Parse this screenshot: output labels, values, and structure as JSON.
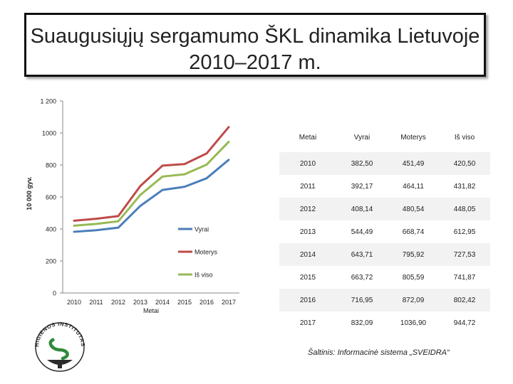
{
  "title": {
    "line1": "Suaugusiųjų sergamumo ŠKL dinamika Lietuvoje",
    "line2": "2010–2017 m."
  },
  "chart_data": {
    "type": "line",
    "title": "",
    "xlabel": "Metai",
    "ylabel": "10 000 gyv.",
    "ylim": [
      0,
      1200
    ],
    "yticks": [
      "0",
      "200",
      "400",
      "600",
      "800",
      "1000",
      "1 200"
    ],
    "categories": [
      "2010",
      "2011",
      "2012",
      "2013",
      "2014",
      "2015",
      "2016",
      "2017"
    ],
    "series": [
      {
        "name": "Vyrai",
        "color": "#4a7ebb",
        "values": [
          382.5,
          392.17,
          408.14,
          544.49,
          643.71,
          663.72,
          716.95,
          832.09
        ]
      },
      {
        "name": "Moterys",
        "color": "#be4b48",
        "values": [
          451.49,
          464.11,
          480.54,
          668.74,
          795.92,
          805.59,
          872.09,
          1036.9
        ]
      },
      {
        "name": "Iš viso",
        "color": "#98b954",
        "values": [
          420.5,
          431.82,
          448.05,
          612.95,
          727.53,
          741.87,
          802.42,
          944.72
        ]
      }
    ]
  },
  "table": {
    "headers": [
      "Metai",
      "Vyrai",
      "Moterys",
      "Iš viso"
    ],
    "rows": [
      [
        "2010",
        "382,50",
        "451,49",
        "420,50"
      ],
      [
        "2011",
        "392,17",
        "464,11",
        "431,82"
      ],
      [
        "2012",
        "408,14",
        "480,54",
        "448,05"
      ],
      [
        "2013",
        "544,49",
        "668,74",
        "612,95"
      ],
      [
        "2014",
        "643,71",
        "795,92",
        "727,53"
      ],
      [
        "2015",
        "663,72",
        "805,59",
        "741,87"
      ],
      [
        "2016",
        "716,95",
        "872,09",
        "802,42"
      ],
      [
        "2017",
        "832,09",
        "1036,90",
        "944,72"
      ]
    ]
  },
  "source": "Šaltinis: Informacinė sistema „SVEIDRA“",
  "logo": {
    "text": "HIGIENOS INSTITUTAS"
  }
}
